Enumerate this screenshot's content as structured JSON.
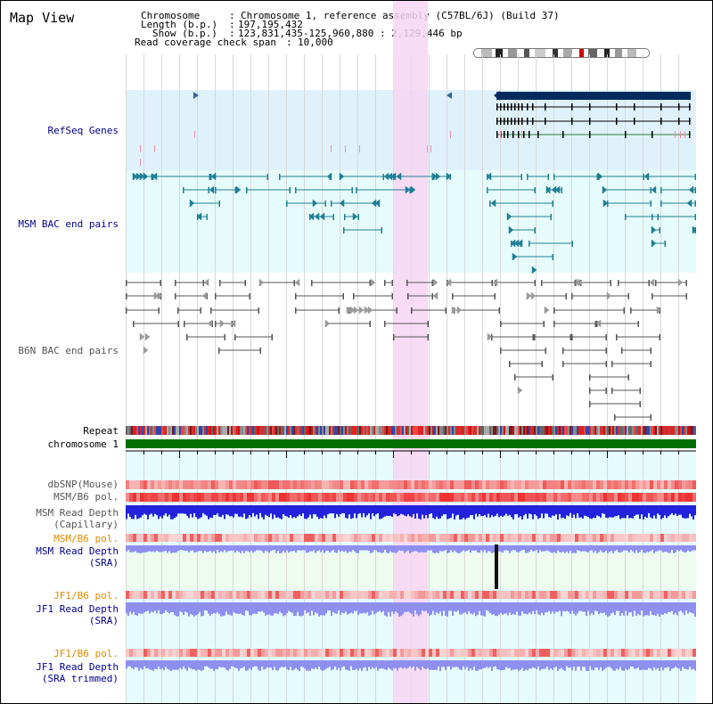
{
  "view_title": "Map View",
  "header": {
    "chromosome_label": "Chromosome",
    "chromosome_value": "Chromosome 1, reference assembly (C57BL/6J) (Build 37)",
    "length_label": "Length (b.p.)",
    "length_value": "197,195,432",
    "show_label": "Show (b.p.)",
    "show_value": "123,831,435-125,960,880 : 2,129,446 bp",
    "coverage_label": "Read coverage check span",
    "coverage_value": "10,000"
  },
  "tracks": {
    "refseq": "RefSeq Genes",
    "msm_bac": "MSM BAC end pairs",
    "b6n_bac": "B6N BAC end pairs",
    "repeat": "Repeat",
    "chromosome": "chromosome 1",
    "dbsnp": "dbSNP(Mouse)",
    "msm_b6_pol_1": "MSM/B6 pol.",
    "msm_read_depth_cap": "MSM Read Depth\n(Capillary)",
    "msm_b6_pol_2": "MSM/B6 pol.",
    "msm_read_depth_sra": "MSM Read Depth\n(SRA)",
    "jf1_b6_pol_1": "JF1/B6 pol.",
    "jf1_read_depth_sra": "JF1 Read Depth\n(SRA)",
    "jf1_b6_pol_2": "JF1/B6 pol.",
    "jf1_read_depth_trim": "JF1 Read Depth\n(SRA trimmed)"
  },
  "axis": {
    "start_bp": 123831435,
    "end_bp": 125960880,
    "ticks": [
      "124000000",
      "124400000",
      "124800000",
      "125200000",
      "125600000"
    ]
  },
  "highlight_region": {
    "start_bp": 124830000,
    "end_bp": 124960000
  },
  "colors": {
    "refseq_bg": "#dff2fb",
    "msm_bg": "#e6fbfb",
    "highlight": "#f7d5f2",
    "gene_dark": "#002b5c",
    "gene_green": "#2e7d32",
    "msm_feature": "#1f7f95",
    "b6n_feature": "#555555",
    "chromosome_bar": "#007000",
    "depth_blue": "#2222dd",
    "depth_light": "#8f8ff0"
  }
}
